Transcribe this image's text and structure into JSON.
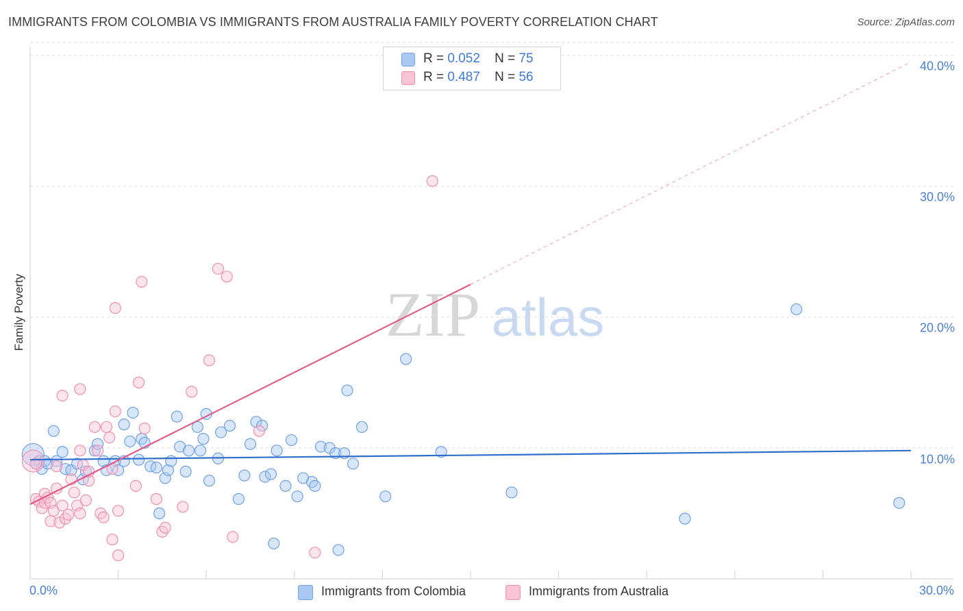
{
  "chart_data": {
    "type": "scatter",
    "title": "IMMIGRANTS FROM COLOMBIA VS IMMIGRANTS FROM AUSTRALIA FAMILY POVERTY CORRELATION CHART",
    "source": "Source: ZipAtlas.com",
    "xlabel": "",
    "ylabel": "Family Poverty",
    "xlim": [
      0,
      30
    ],
    "ylim": [
      0,
      40
    ],
    "grid": true,
    "x_tick_labels": [
      "0.0%",
      "30.0%"
    ],
    "y_ticks": [
      10,
      20,
      30,
      40
    ],
    "y_tick_labels": [
      "10.0%",
      "20.0%",
      "30.0%",
      "40.0%"
    ],
    "watermark": "ZIPatlas",
    "legend": [
      {
        "r_label": "R =",
        "r_value": "0.052",
        "n_label": "N =",
        "n_value": "75"
      },
      {
        "r_label": "R =",
        "r_value": "0.487",
        "n_label": "N =",
        "n_value": "56"
      }
    ],
    "series": [
      {
        "name": "Immigrants from Colombia",
        "color": "#6fa0e8",
        "fill": "#a9c8f2",
        "trend_color": "#2f6fcc",
        "trend": {
          "x0": 0,
          "y0": 9.1,
          "x1": 30,
          "y1": 9.8
        },
        "points": [
          [
            0.1,
            9.5
          ],
          [
            0.2,
            8.8
          ],
          [
            0.3,
            9.0
          ],
          [
            0.4,
            8.4
          ],
          [
            0.5,
            9.0
          ],
          [
            0.6,
            8.8
          ],
          [
            0.8,
            11.3
          ],
          [
            0.9,
            9.0
          ],
          [
            1.1,
            9.7
          ],
          [
            1.2,
            8.4
          ],
          [
            1.4,
            8.3
          ],
          [
            1.6,
            8.8
          ],
          [
            1.8,
            7.6
          ],
          [
            1.9,
            8.2
          ],
          [
            2.2,
            9.8
          ],
          [
            2.3,
            10.3
          ],
          [
            2.5,
            9.0
          ],
          [
            2.6,
            8.3
          ],
          [
            2.9,
            9.0
          ],
          [
            3.0,
            8.3
          ],
          [
            3.2,
            11.8
          ],
          [
            3.2,
            9.0
          ],
          [
            3.4,
            10.5
          ],
          [
            3.5,
            12.7
          ],
          [
            3.7,
            9.1
          ],
          [
            3.8,
            10.7
          ],
          [
            3.9,
            10.4
          ],
          [
            4.1,
            8.6
          ],
          [
            4.3,
            8.5
          ],
          [
            4.4,
            5.0
          ],
          [
            4.6,
            7.7
          ],
          [
            4.7,
            8.3
          ],
          [
            4.8,
            9.0
          ],
          [
            5.0,
            12.4
          ],
          [
            5.1,
            10.1
          ],
          [
            5.3,
            8.2
          ],
          [
            5.4,
            9.8
          ],
          [
            5.7,
            11.6
          ],
          [
            5.8,
            9.8
          ],
          [
            5.9,
            10.7
          ],
          [
            6.0,
            12.6
          ],
          [
            6.1,
            7.5
          ],
          [
            6.4,
            9.2
          ],
          [
            6.5,
            11.2
          ],
          [
            6.8,
            11.7
          ],
          [
            7.1,
            6.1
          ],
          [
            7.3,
            7.9
          ],
          [
            7.5,
            10.3
          ],
          [
            7.7,
            12.0
          ],
          [
            7.9,
            11.7
          ],
          [
            8.0,
            7.8
          ],
          [
            8.2,
            8.0
          ],
          [
            8.3,
            2.7
          ],
          [
            8.4,
            9.8
          ],
          [
            8.7,
            7.1
          ],
          [
            8.9,
            10.6
          ],
          [
            9.1,
            6.3
          ],
          [
            9.3,
            7.7
          ],
          [
            9.6,
            7.4
          ],
          [
            9.7,
            7.1
          ],
          [
            9.9,
            10.1
          ],
          [
            10.2,
            10.0
          ],
          [
            10.4,
            9.6
          ],
          [
            10.5,
            2.2
          ],
          [
            10.7,
            9.6
          ],
          [
            10.8,
            14.4
          ],
          [
            11.0,
            8.8
          ],
          [
            11.3,
            11.6
          ],
          [
            12.1,
            6.3
          ],
          [
            12.8,
            16.8
          ],
          [
            14.0,
            9.7
          ],
          [
            16.4,
            6.6
          ],
          [
            22.3,
            4.6
          ],
          [
            26.1,
            20.6
          ],
          [
            29.6,
            5.8
          ]
        ]
      },
      {
        "name": "Immigrants from Australia",
        "color": "#ef8fb0",
        "fill": "#f8c3d5",
        "trend_color": "#e05a8a",
        "trend": {
          "x0": 0,
          "y0": 5.7,
          "x1": 15,
          "y1": 22.5
        },
        "trend_dashed_to": {
          "x": 30,
          "y": 39.5
        },
        "points": [
          [
            0.1,
            9.0
          ],
          [
            0.2,
            8.8
          ],
          [
            0.2,
            6.1
          ],
          [
            0.3,
            5.9
          ],
          [
            0.4,
            5.4
          ],
          [
            0.5,
            6.5
          ],
          [
            0.5,
            5.8
          ],
          [
            0.6,
            6.2
          ],
          [
            0.7,
            4.4
          ],
          [
            0.7,
            5.8
          ],
          [
            0.8,
            5.2
          ],
          [
            0.9,
            8.6
          ],
          [
            0.9,
            6.9
          ],
          [
            1.0,
            4.3
          ],
          [
            1.1,
            14.0
          ],
          [
            1.1,
            5.6
          ],
          [
            1.2,
            4.6
          ],
          [
            1.3,
            4.9
          ],
          [
            1.4,
            7.6
          ],
          [
            1.5,
            6.6
          ],
          [
            1.6,
            5.6
          ],
          [
            1.7,
            9.8
          ],
          [
            1.7,
            14.5
          ],
          [
            1.7,
            5.0
          ],
          [
            1.8,
            8.7
          ],
          [
            1.9,
            6.0
          ],
          [
            2.0,
            7.5
          ],
          [
            2.0,
            8.2
          ],
          [
            2.2,
            11.6
          ],
          [
            2.3,
            9.8
          ],
          [
            2.4,
            5.0
          ],
          [
            2.5,
            4.7
          ],
          [
            2.6,
            11.6
          ],
          [
            2.7,
            10.8
          ],
          [
            2.8,
            8.4
          ],
          [
            2.8,
            3.0
          ],
          [
            2.9,
            12.8
          ],
          [
            2.9,
            20.7
          ],
          [
            3.0,
            5.2
          ],
          [
            3.0,
            1.8
          ],
          [
            3.6,
            7.1
          ],
          [
            3.7,
            15.0
          ],
          [
            3.8,
            22.7
          ],
          [
            3.9,
            11.5
          ],
          [
            4.3,
            6.1
          ],
          [
            4.5,
            3.6
          ],
          [
            4.6,
            3.9
          ],
          [
            5.2,
            5.5
          ],
          [
            5.5,
            14.3
          ],
          [
            6.1,
            16.7
          ],
          [
            6.4,
            23.7
          ],
          [
            6.7,
            23.1
          ],
          [
            6.9,
            3.2
          ],
          [
            7.8,
            11.3
          ],
          [
            9.7,
            2.0
          ],
          [
            13.7,
            30.4
          ]
        ]
      }
    ]
  },
  "bottom_legend": [
    "Immigrants from Colombia",
    "Immigrants from Australia"
  ]
}
